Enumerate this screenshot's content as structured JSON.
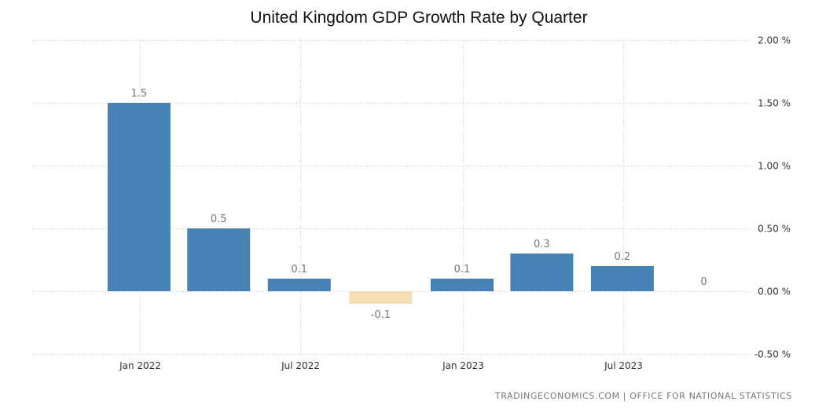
{
  "chart_data": {
    "type": "bar",
    "title": "United Kingdom GDP Growth Rate by Quarter",
    "xlabel": "",
    "ylabel": "",
    "x": [
      "2021-12-31",
      "2022-03-31",
      "2022-06-30",
      "2022-09-30",
      "2022-12-31",
      "2023-03-31",
      "2023-06-30",
      "2023-09-30"
    ],
    "values": [
      1.5,
      0.5,
      0.1,
      -0.1,
      0.1,
      0.3,
      0.2,
      0
    ],
    "value_labels": [
      "1.5",
      "0.5",
      "0.1",
      "-0.1",
      "0.1",
      "0.3",
      "0.2",
      "0"
    ],
    "x_ticks": [
      {
        "date": "2022-01-01",
        "label": "Jan 2022"
      },
      {
        "date": "2022-07-01",
        "label": "Jul 2022"
      },
      {
        "date": "2023-01-01",
        "label": "Jan 2023"
      },
      {
        "date": "2023-07-01",
        "label": "Jul 2023"
      }
    ],
    "y_ticks": [
      2.0,
      1.5,
      1.0,
      0.5,
      0.0,
      -0.5
    ],
    "y_tick_labels": [
      "2.00 %",
      "1.50 %",
      "1.00 %",
      "0.50 %",
      "0.00 %",
      "-0.50 %"
    ],
    "ylim": [
      -0.5,
      2.0
    ],
    "y_axis_position": "right",
    "grid": true,
    "legend": "none",
    "colors": {
      "positive": "#4682b4",
      "negative": "#f5deb3",
      "grid": "#c8c8c8"
    }
  },
  "source": "TRADINGECONOMICS.COM  |  OFFICE FOR NATIONAL STATISTICS"
}
